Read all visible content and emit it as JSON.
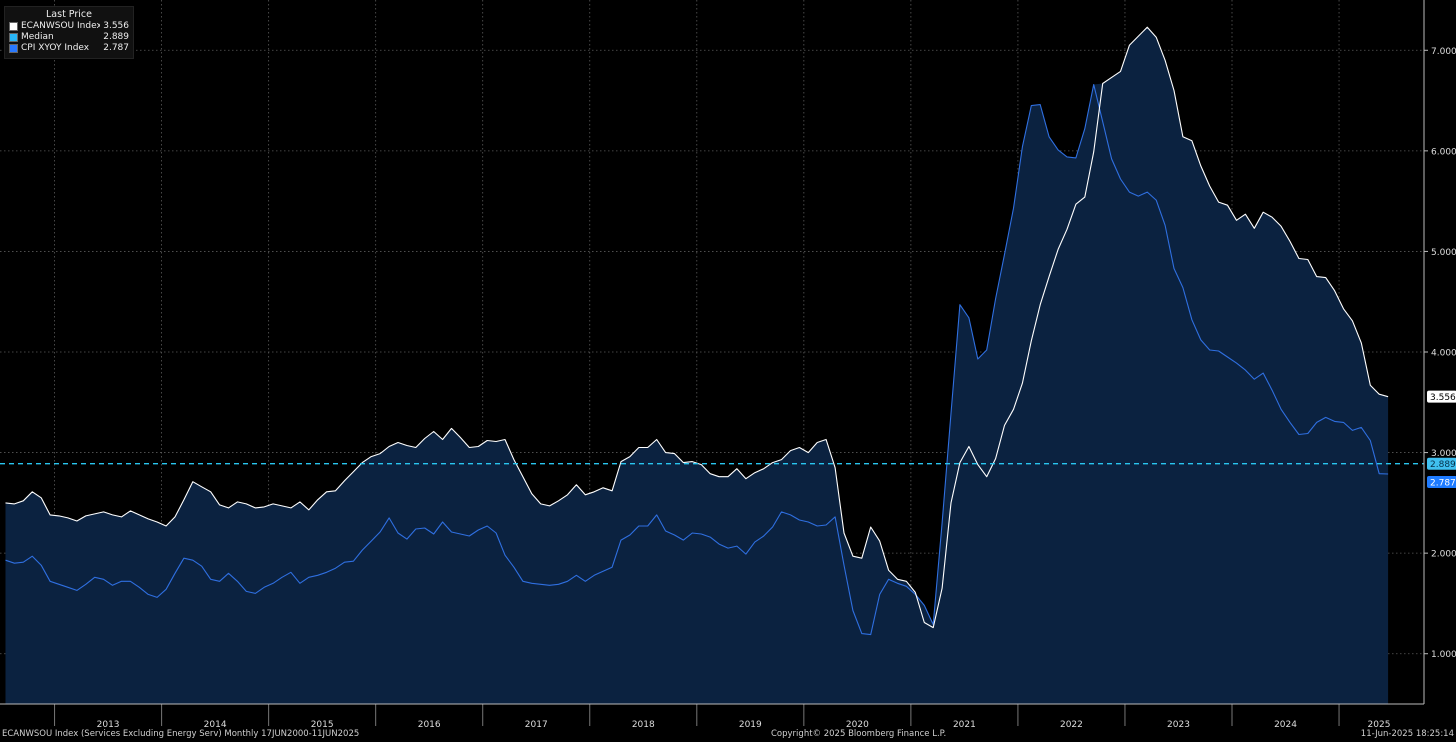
{
  "legend": {
    "title": "Last Price",
    "items": [
      {
        "name": "ECANWSOU Index",
        "value": "3.556",
        "color": "#ffffff"
      },
      {
        "name": "Median",
        "value": "2.889",
        "color": "#29b6f6"
      },
      {
        "name": "CPI XYOY Index",
        "value": "2.787",
        "color": "#2979ff"
      }
    ]
  },
  "footer": {
    "left": "ECANWSOU Index (Services Excluding Energy Serv)  Monthly 17JUN2000-11JUN2025",
    "center": "Copyright© 2025 Bloomberg Finance L.P.",
    "right": "11-Jun-2025 18:25:14"
  },
  "colors": {
    "background": "#000000",
    "area_fill": "#0b2240",
    "services_line": "#ffffff",
    "cpi_line": "#2f6fe0",
    "median_line": "#29c6f0",
    "grid": "#5a5a5a",
    "cpi_badge": "#1e7bff",
    "median_badge": "#40c0f0",
    "services_badge": "#ffffff"
  },
  "chart_data": {
    "type": "line",
    "x_unit": "monthly, 2012-07 to 2025-05",
    "x_start": "2012-07",
    "year_labels": [
      "2013",
      "2014",
      "2015",
      "2016",
      "2017",
      "2018",
      "2019",
      "2020",
      "2021",
      "2022",
      "2023",
      "2024",
      "2025"
    ],
    "ylim": [
      0.5,
      7.5
    ],
    "y_ticks": [
      "1.000",
      "2.000",
      "3.000",
      "4.000",
      "5.000",
      "6.000",
      "7.000"
    ],
    "grid": true,
    "legend_position": "top-left",
    "reference_line": {
      "name": "Median",
      "value": 2.889,
      "label": "2.889"
    },
    "last_value_labels": {
      "ECANWSOU Index": "3.556",
      "CPI XYOY Index": "2.787"
    },
    "series": [
      {
        "name": "ECANWSOU Index",
        "values": [
          2.5,
          2.49,
          2.52,
          2.61,
          2.55,
          2.38,
          2.37,
          2.35,
          2.32,
          2.37,
          2.39,
          2.41,
          2.38,
          2.36,
          2.42,
          2.38,
          2.34,
          2.31,
          2.27,
          2.36,
          2.53,
          2.71,
          2.66,
          2.61,
          2.48,
          2.45,
          2.51,
          2.49,
          2.45,
          2.46,
          2.49,
          2.47,
          2.45,
          2.51,
          2.43,
          2.53,
          2.61,
          2.62,
          2.72,
          2.81,
          2.9,
          2.96,
          2.99,
          3.06,
          3.1,
          3.07,
          3.05,
          3.14,
          3.21,
          3.13,
          3.24,
          3.15,
          3.05,
          3.06,
          3.12,
          3.11,
          3.13,
          2.93,
          2.76,
          2.59,
          2.49,
          2.47,
          2.52,
          2.58,
          2.68,
          2.58,
          2.61,
          2.65,
          2.62,
          2.91,
          2.96,
          3.05,
          3.05,
          3.13,
          3.0,
          2.99,
          2.9,
          2.91,
          2.88,
          2.79,
          2.76,
          2.76,
          2.84,
          2.74,
          2.8,
          2.84,
          2.9,
          2.93,
          3.02,
          3.05,
          3.0,
          3.1,
          3.13,
          2.85,
          2.2,
          1.97,
          1.95,
          2.26,
          2.12,
          1.83,
          1.74,
          1.72,
          1.61,
          1.31,
          1.26,
          1.65,
          2.5,
          2.9,
          3.06,
          2.88,
          2.76,
          2.94,
          3.27,
          3.43,
          3.69,
          4.11,
          4.47,
          4.75,
          5.02,
          5.22,
          5.47,
          5.54,
          5.99,
          6.67,
          6.73,
          6.79,
          7.05,
          7.14,
          7.23,
          7.13,
          6.9,
          6.6,
          6.14,
          6.1,
          5.85,
          5.65,
          5.49,
          5.46,
          5.31,
          5.37,
          5.23,
          5.39,
          5.34,
          5.25,
          5.1,
          4.93,
          4.92,
          4.75,
          4.74,
          4.61,
          4.43,
          4.31,
          4.09,
          3.67,
          3.58,
          3.556
        ]
      },
      {
        "name": "CPI XYOY Index",
        "values": [
          1.93,
          1.9,
          1.91,
          1.97,
          1.88,
          1.72,
          1.69,
          1.66,
          1.63,
          1.69,
          1.76,
          1.74,
          1.68,
          1.72,
          1.72,
          1.66,
          1.59,
          1.56,
          1.64,
          1.8,
          1.95,
          1.93,
          1.87,
          1.74,
          1.72,
          1.8,
          1.72,
          1.62,
          1.6,
          1.66,
          1.7,
          1.76,
          1.81,
          1.7,
          1.76,
          1.78,
          1.81,
          1.85,
          1.91,
          1.92,
          2.03,
          2.12,
          2.21,
          2.35,
          2.2,
          2.14,
          2.24,
          2.25,
          2.19,
          2.31,
          2.21,
          2.19,
          2.17,
          2.23,
          2.27,
          2.2,
          1.98,
          1.86,
          1.72,
          1.7,
          1.69,
          1.68,
          1.69,
          1.72,
          1.78,
          1.72,
          1.78,
          1.82,
          1.86,
          2.13,
          2.18,
          2.27,
          2.27,
          2.38,
          2.22,
          2.18,
          2.13,
          2.2,
          2.19,
          2.16,
          2.09,
          2.05,
          2.07,
          1.99,
          2.11,
          2.17,
          2.26,
          2.41,
          2.38,
          2.33,
          2.31,
          2.27,
          2.28,
          2.36,
          1.88,
          1.43,
          1.2,
          1.19,
          1.59,
          1.74,
          1.7,
          1.67,
          1.59,
          1.48,
          1.29,
          2.3,
          3.39,
          4.47,
          4.34,
          3.93,
          4.02,
          4.53,
          4.97,
          5.43,
          6.04,
          6.45,
          6.46,
          6.14,
          6.01,
          5.94,
          5.93,
          6.22,
          6.66,
          6.29,
          5.92,
          5.72,
          5.59,
          5.55,
          5.59,
          5.51,
          5.26,
          4.83,
          4.64,
          4.32,
          4.12,
          4.02,
          4.01,
          3.95,
          3.89,
          3.82,
          3.73,
          3.79,
          3.62,
          3.43,
          3.3,
          3.18,
          3.19,
          3.3,
          3.35,
          3.31,
          3.3,
          3.22,
          3.25,
          3.12,
          2.79,
          2.787
        ]
      }
    ]
  }
}
